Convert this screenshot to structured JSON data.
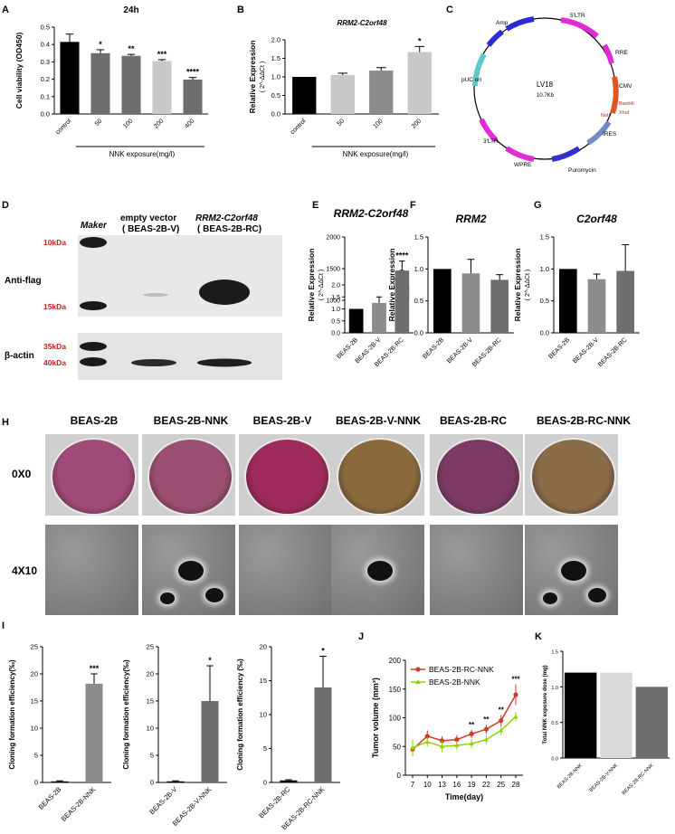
{
  "panel_letters": {
    "a": "A",
    "b": "B",
    "c": "C",
    "d": "D",
    "e": "E",
    "f": "F",
    "g": "G",
    "h": "H",
    "i": "I",
    "j": "J",
    "k": "K"
  },
  "colors": {
    "black": "#000000",
    "dark_gray": "#6e6e6e",
    "mid_gray": "#8c8c8c",
    "light_gray": "#c8c8c8",
    "lightest_gray": "#d9d9d9",
    "red": "#d13a2a",
    "green": "#8fd400",
    "blot_label_red": "#cc1f1f"
  },
  "chart_data": [
    {
      "id": "A",
      "type": "bar",
      "title": "24h",
      "xlabel": "NNK exposure(mg/l)",
      "ylabel": "Cell viability (OD450)",
      "categories": [
        "control",
        "50",
        "100",
        "200",
        "400"
      ],
      "values": [
        0.415,
        0.35,
        0.335,
        0.305,
        0.198
      ],
      "errors": [
        0.045,
        0.02,
        0.008,
        0.008,
        0.012
      ],
      "significance": [
        "",
        "*",
        "**",
        "***",
        "****"
      ],
      "ylim": [
        0,
        0.5
      ],
      "yticks": [
        "0.0",
        "0.1",
        "0.2",
        "0.3",
        "0.4",
        "0.5"
      ]
    },
    {
      "id": "B",
      "type": "bar",
      "title": "RRM2-C2orf48",
      "xlabel": "NNK exposure(mg/l)",
      "ylabel": "Relative Expression",
      "ylabel_sub": "( 2^-ΔΔCt )",
      "categories": [
        "control",
        "50",
        "100",
        "200"
      ],
      "values": [
        1.0,
        1.05,
        1.17,
        1.67
      ],
      "errors": [
        0.0,
        0.05,
        0.08,
        0.15
      ],
      "significance": [
        "",
        "",
        "",
        "*"
      ],
      "ylim": [
        0,
        2.0
      ],
      "yticks": [
        "0.0",
        "0.5",
        "1.0",
        "1.5",
        "2.0"
      ]
    },
    {
      "id": "E",
      "type": "bar",
      "title": "RRM2-C2orf48",
      "ylabel": "Relative Expression",
      "ylabel_sub": "( 2^-ΔΔCt )",
      "categories": [
        "BEAS-2B",
        "BEAS-2B-V",
        "BEAS-2B-RC"
      ],
      "values": [
        1.0,
        1.25,
        1470
      ],
      "errors": [
        0.0,
        0.25,
        150
      ],
      "significance": [
        "",
        "",
        "****"
      ],
      "axis_break": true,
      "yticks_lower": [
        "0.0",
        "0.5",
        "1.0",
        "1.5",
        "2.0"
      ],
      "yticks_upper": [
        "1000",
        "1500",
        "2000"
      ]
    },
    {
      "id": "F",
      "type": "bar",
      "title": "RRM2",
      "ylabel": "Relative Expression",
      "ylabel_sub": "( 2^-ΔΔCt )",
      "categories": [
        "BEAS-2B",
        "BEAS-2B-V",
        "BEAS-2B-RC"
      ],
      "values": [
        1.0,
        0.93,
        0.83
      ],
      "errors": [
        0.0,
        0.22,
        0.08
      ],
      "ylim": [
        0,
        1.5
      ],
      "yticks": [
        "0.0",
        "0.5",
        "1.0",
        "1.5"
      ]
    },
    {
      "id": "G",
      "type": "bar",
      "title": "C2orf48",
      "ylabel": "Relative Expression",
      "ylabel_sub": "( 2^-ΔΔCt )",
      "categories": [
        "BEAS-2B",
        "BEAS-2B-V",
        "BEAS-2B-RC"
      ],
      "values": [
        1.0,
        0.84,
        0.97
      ],
      "errors": [
        0.0,
        0.08,
        0.41
      ],
      "ylim": [
        0,
        1.5
      ],
      "yticks": [
        "0.0",
        "0.5",
        "1.0",
        "1.5"
      ]
    },
    {
      "id": "I1",
      "type": "bar",
      "ylabel": "Cloning formation efficiency(‰)",
      "categories": [
        "BEAS-2B",
        "BEAS-2B-NNK"
      ],
      "values": [
        0.2,
        18.2
      ],
      "errors": [
        0.1,
        1.8
      ],
      "significance": [
        "",
        "***"
      ],
      "ylim": [
        0,
        25
      ],
      "yticks": [
        "0",
        "5",
        "10",
        "15",
        "20",
        "25"
      ]
    },
    {
      "id": "I2",
      "type": "bar",
      "ylabel": "Cloning formation efficiency(‰)",
      "categories": [
        "BEAS-2B-V",
        "BEAS-2B-V-NNK"
      ],
      "values": [
        0.2,
        15.0
      ],
      "errors": [
        0.1,
        6.5
      ],
      "significance": [
        "",
        "*"
      ],
      "ylim": [
        0,
        25
      ],
      "yticks": [
        "0",
        "5",
        "10",
        "15",
        "20",
        "25"
      ]
    },
    {
      "id": "I3",
      "type": "bar",
      "ylabel": "Cloning formation efficiency (‰)",
      "categories": [
        "BEAS-2B-RC",
        "BEAS-2B-RC-NNK"
      ],
      "values": [
        0.3,
        14.0
      ],
      "errors": [
        0.1,
        4.6
      ],
      "significance": [
        "",
        "*"
      ],
      "ylim": [
        0,
        20
      ],
      "yticks": [
        "0",
        "5",
        "10",
        "15",
        "20"
      ]
    },
    {
      "id": "J",
      "type": "line",
      "xlabel": "Time(day)",
      "ylabel": "Tumor volume (mm³)",
      "x": [
        7,
        10,
        13,
        16,
        19,
        22,
        25,
        28
      ],
      "series": [
        {
          "name": "BEAS-2B-RC-NNK",
          "values": [
            45,
            68,
            60,
            62,
            72,
            80,
            95,
            140
          ],
          "errors": [
            12,
            10,
            8,
            8,
            7,
            8,
            10,
            18
          ]
        },
        {
          "name": "BEAS-2B-NNK",
          "values": [
            48,
            58,
            50,
            52,
            55,
            62,
            78,
            102
          ],
          "errors": [
            14,
            8,
            10,
            8,
            8,
            8,
            8,
            8
          ]
        }
      ],
      "significance": [
        "",
        "",
        "",
        "",
        "**",
        "**",
        "**",
        "***"
      ],
      "xticks": [
        "7",
        "10",
        "13",
        "16",
        "19",
        "22",
        "25",
        "28"
      ],
      "ylim": [
        0,
        200
      ],
      "yticks": [
        "0",
        "50",
        "100",
        "150",
        "200"
      ]
    },
    {
      "id": "K",
      "type": "bar",
      "ylabel": "Total NNK exposure dose (mg)",
      "categories": [
        "BEAS-2B-NNK",
        "BEAS-2B-V-NNK",
        "BEAS-2B-RC-NNK"
      ],
      "values": [
        1.2,
        1.2,
        1.0
      ],
      "ylim": [
        0,
        1.5
      ],
      "yticks": [
        "0.0",
        "0.5",
        "1.0",
        "1.5"
      ]
    }
  ],
  "plasmid_map": {
    "name": "LV18",
    "size": "10.7Kb",
    "features": [
      "Amp",
      "5'LTR",
      "RRE",
      "CMV",
      "BamHI",
      "XhoI",
      "NotI",
      "IRES",
      "Puromycin",
      "WPRE",
      "3'LTR",
      "pUC ori"
    ]
  },
  "western_blot": {
    "lane_labels": [
      "Maker",
      "empty vector",
      "( BEAS-2B-V)",
      "RRM2-C2orf48",
      "( BEAS-2B-RC)"
    ],
    "row_labels": [
      "Anti-flag",
      "β-actin"
    ],
    "markers": [
      "10kDa",
      "15kDa",
      "35kDa",
      "40kDa"
    ]
  },
  "culture_images": {
    "columns": [
      "BEAS-2B",
      "BEAS-2B-NNK",
      "BEAS-2B-V",
      "BEAS-2B-V-NNK",
      "BEAS-2B-RC",
      "BEAS-2B-RC-NNK"
    ],
    "rows": [
      "0X0",
      "4X10"
    ],
    "well_colors": [
      "#a04a78",
      "#9a4f70",
      "#9d2a5a",
      "#8a6a3c",
      "#7c3a62",
      "#8a6c48"
    ]
  }
}
